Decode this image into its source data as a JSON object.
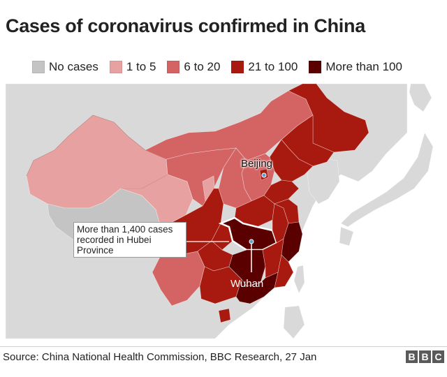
{
  "title": "Cases of coronavirus confirmed in China",
  "legend": [
    {
      "label": "No cases",
      "color": "#c4c4c4"
    },
    {
      "label": "1 to 5",
      "color": "#e8a1a1"
    },
    {
      "label": "6 to 20",
      "color": "#d46464"
    },
    {
      "label": "21 to 100",
      "color": "#a81a0f"
    },
    {
      "label": "More than 100",
      "color": "#5a0000"
    }
  ],
  "map": {
    "background_land_color": "#d9d9d9",
    "sea_color": "#ffffff",
    "hubei_outline_color": "#ffffff",
    "labels": {
      "beijing": "Beijing",
      "wuhan": "Wuhan"
    },
    "callout": {
      "lines": [
        "More than 1,400 cases",
        "recorded in Hubei",
        "Province"
      ]
    }
  },
  "source": "Source: China National Health Commission, BBC Research, 27 Jan",
  "logo": {
    "letters": [
      "B",
      "B",
      "C"
    ]
  }
}
